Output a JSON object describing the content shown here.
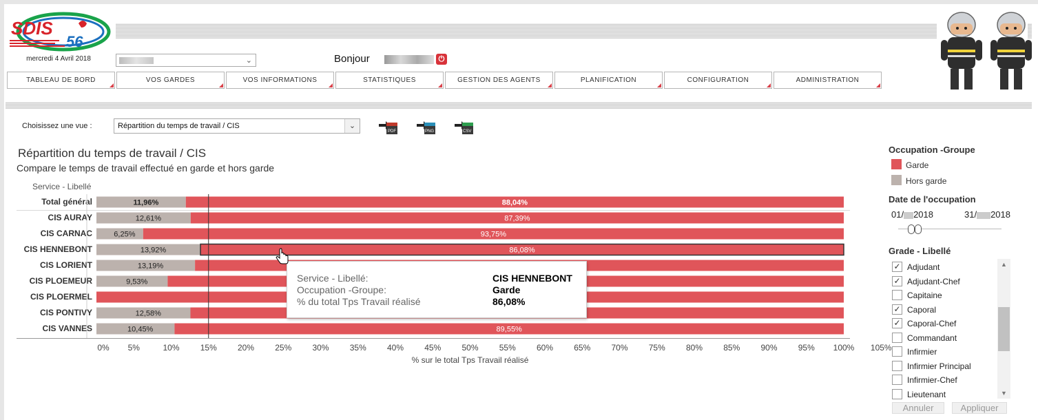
{
  "header": {
    "logo_text": "SDIS 56",
    "date": "mercredi 4 Avril 2018",
    "greeting": "Bonjour"
  },
  "nav": {
    "items": [
      "TABLEAU DE BORD",
      "VOS GARDES",
      "VOS INFORMATIONS",
      "STATISTIQUES",
      "GESTION DES AGENTS",
      "PLANIFICATION",
      "CONFIGURATION",
      "ADMINISTRATION"
    ]
  },
  "toolbar": {
    "view_label": "Choisissez une vue :",
    "view_value": "Répartition du temps de travail / CIS",
    "exports": [
      "PDF",
      "PNG",
      "CSV"
    ]
  },
  "chart_header": {
    "title": "Répartition du temps de travail / CIS",
    "subtitle": "Compare le temps de travail effectué en garde et hors garde",
    "row_header": "Service - Libellé"
  },
  "chart_data": {
    "type": "bar",
    "orientation": "horizontal-stacked",
    "categories": [
      "Total général",
      "CIS AURAY",
      "CIS CARNAC",
      "CIS HENNEBONT",
      "CIS LORIENT",
      "CIS PLOEMEUR",
      "CIS PLOERMEL",
      "CIS PONTIVY",
      "CIS VANNES"
    ],
    "series": [
      {
        "name": "Hors garde",
        "color": "#bcb2ad",
        "values": [
          11.96,
          12.61,
          6.25,
          13.92,
          13.19,
          9.53,
          0,
          12.58,
          10.45
        ]
      },
      {
        "name": "Garde",
        "color": "#e0555a",
        "values": [
          88.04,
          87.39,
          93.75,
          86.08,
          86.81,
          90.47,
          100,
          87.42,
          89.55
        ]
      }
    ],
    "labels_hors_garde": [
      "11,96%",
      "12,61%",
      "6,25%",
      "13,92%",
      "13,19%",
      "9,53%",
      "",
      "12,58%",
      "10,45%"
    ],
    "labels_garde": [
      "88,04%",
      "87,39%",
      "93,75%",
      "86,08%",
      "",
      "",
      "",
      "",
      "89,55%"
    ],
    "xlabel": "% sur le total Tps Travail réalisé",
    "xticks": [
      "0%",
      "5%",
      "10%",
      "15%",
      "20%",
      "25%",
      "30%",
      "35%",
      "40%",
      "45%",
      "50%",
      "55%",
      "60%",
      "65%",
      "70%",
      "75%",
      "80%",
      "85%",
      "90%",
      "95%",
      "100%",
      "105%"
    ],
    "xlim": [
      0,
      105
    ],
    "reference_line": 15,
    "highlighted": "CIS HENNEBONT"
  },
  "tooltip": {
    "rows": [
      {
        "label": "Service - Libellé:",
        "value": "CIS HENNEBONT"
      },
      {
        "label": "Occupation -Groupe:",
        "value": "Garde"
      },
      {
        "label": "% du total Tps Travail réalisé",
        "value": "86,08%"
      }
    ]
  },
  "right_panel": {
    "legend_title": "Occupation -Groupe",
    "legend": [
      {
        "label": "Garde",
        "color": "#e0555a"
      },
      {
        "label": "Hors garde",
        "color": "#bcb2ad"
      }
    ],
    "date_title": "Date de l'occupation",
    "date_from": "01/",
    "date_from_year": "2018",
    "date_to": "31/",
    "date_to_year": "2018",
    "grade_title": "Grade - Libellé",
    "grades": [
      {
        "label": "Adjudant",
        "checked": true
      },
      {
        "label": "Adjudant-Chef",
        "checked": true
      },
      {
        "label": "Capitaine",
        "checked": false
      },
      {
        "label": "Caporal",
        "checked": true
      },
      {
        "label": "Caporal-Chef",
        "checked": true
      },
      {
        "label": "Commandant",
        "checked": false
      },
      {
        "label": "Infirmier",
        "checked": false
      },
      {
        "label": "Infirmier Principal",
        "checked": false
      },
      {
        "label": "Infirmier-Chef",
        "checked": false
      },
      {
        "label": "Lieutenant",
        "checked": false
      }
    ],
    "cancel_label": "Annuler",
    "apply_label": "Appliquer"
  }
}
